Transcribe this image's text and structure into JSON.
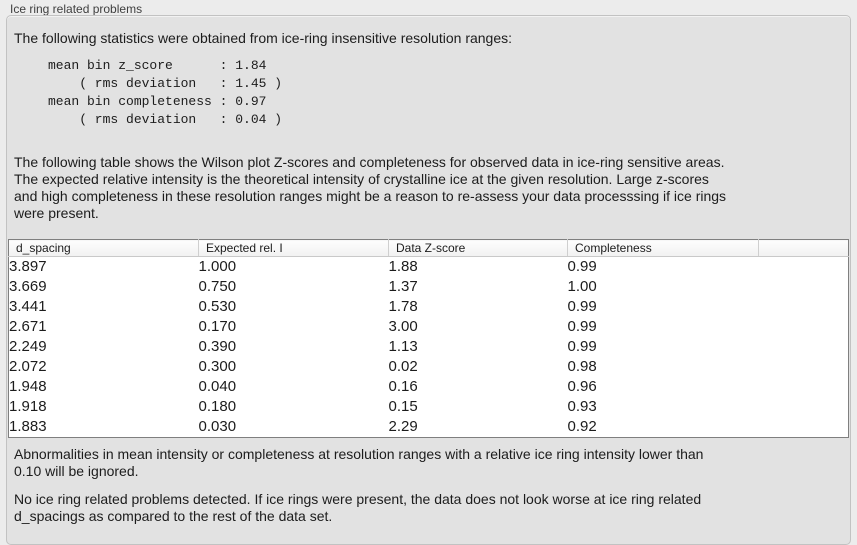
{
  "panel": {
    "title": "Ice ring related problems"
  },
  "stats": {
    "intro": "The following statistics were obtained from ice-ring insensitive resolution ranges:",
    "block": "mean bin z_score      : 1.84\n    ( rms deviation   : 1.45 )\nmean bin completeness : 0.97\n    ( rms deviation   : 0.04 )"
  },
  "table_intro": "The following table shows the Wilson plot Z-scores and completeness for observed data in ice-ring sensitive areas.\nThe expected relative intensity is the theoretical intensity of crystalline ice at the given resolution. Large z-scores\nand high completeness in these resolution ranges might be a reason to re-assess your data processsing if ice rings\nwere present.",
  "table": {
    "columns": [
      "d_spacing",
      "Expected rel. I",
      "Data Z-score",
      "Completeness",
      ""
    ],
    "rows": [
      [
        "3.897",
        "1.000",
        "1.88",
        "0.99"
      ],
      [
        "3.669",
        "0.750",
        "1.37",
        "1.00"
      ],
      [
        "3.441",
        "0.530",
        "1.78",
        "0.99"
      ],
      [
        "2.671",
        "0.170",
        "3.00",
        "0.99"
      ],
      [
        "2.249",
        "0.390",
        "1.13",
        "0.99"
      ],
      [
        "2.072",
        "0.300",
        "0.02",
        "0.98"
      ],
      [
        "1.948",
        "0.040",
        "0.16",
        "0.96"
      ],
      [
        "1.918",
        "0.180",
        "0.15",
        "0.93"
      ],
      [
        "1.883",
        "0.030",
        "2.29",
        "0.92"
      ]
    ]
  },
  "notes": {
    "ignore_note": "Abnormalities in mean intensity or completeness at resolution ranges with a relative ice ring intensity lower than\n0.10 will be ignored.",
    "result_note": "No ice ring related problems detected. If ice rings were present, the data does not look worse at ice ring related\nd_spacings as compared to the rest of the data set."
  },
  "colors": {
    "window_bg": "#ececec",
    "panel_bg": "#e2e2e2",
    "panel_border": "#c2c2c2",
    "table_border": "#7f7f7f",
    "table_bg": "#ffffff",
    "header_separator": "#cfcfcf",
    "header_underline": "#c9c9c9",
    "text_color": "#1c1c1c",
    "title_color": "#3f3f3f"
  }
}
